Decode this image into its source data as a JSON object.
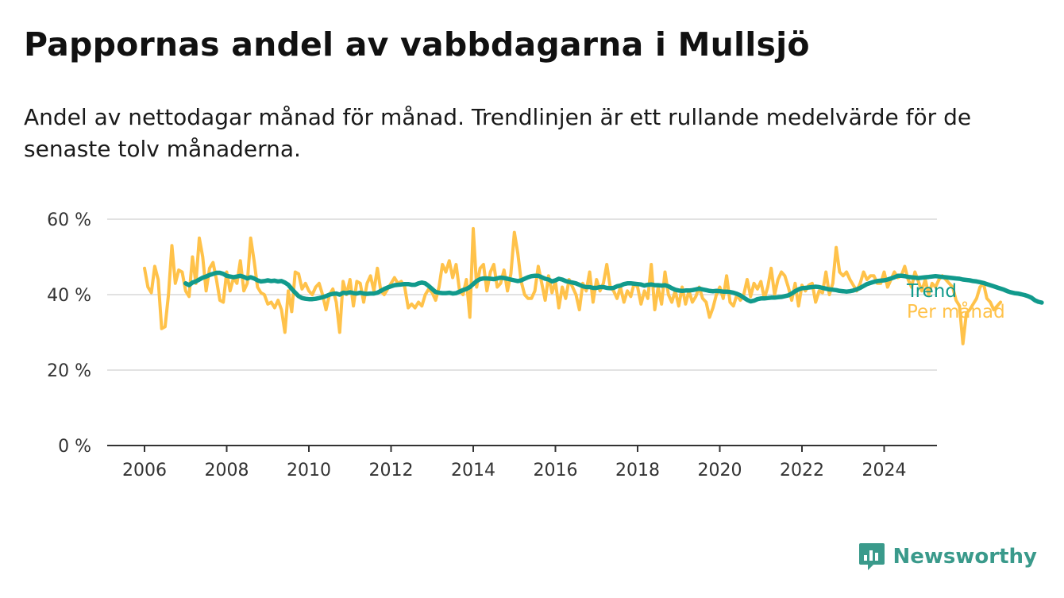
{
  "title": "Pappornas andel av vabbdagarna i Mullsjö",
  "subtitle": "Andel av nettodagar månad för månad. Trendlinjen är ett rullande medelvärde för de senaste tolv månaderna.",
  "brand": "Newsworthy",
  "colors": {
    "trend": "#119a8c",
    "monthly": "#ffc24a",
    "grid": "#d9d9d9",
    "axis": "#333333",
    "brand": "#3a9a8b"
  },
  "chart_data": {
    "type": "line",
    "title": "Pappornas andel av vabbdagarna i Mullsjö",
    "xlabel": "",
    "ylabel": "",
    "x_ticks": [
      "2006",
      "2008",
      "2010",
      "2012",
      "2014",
      "2016",
      "2018",
      "2020",
      "2022",
      "2024"
    ],
    "y_ticks": [
      "0 %",
      "20 %",
      "40 %",
      "60 %"
    ],
    "ylim": [
      0,
      60
    ],
    "xlim": [
      "2005-07",
      "2024-12"
    ],
    "grid": true,
    "legend_position": "right, at line ends",
    "series": [
      {
        "name": "Trend",
        "start": "2007-01",
        "values": [
          43,
          42.5,
          43.2,
          43.5,
          44,
          44.5,
          44.8,
          45.2,
          45.5,
          45.8,
          45.8,
          45.5,
          45,
          44.8,
          44.6,
          44.8,
          45,
          44.7,
          44.3,
          44.6,
          44.3,
          43.8,
          43.5,
          43.6,
          43.8,
          43.6,
          43.7,
          43.5,
          43.6,
          43.2,
          42.6,
          41.5,
          40.5,
          39.6,
          39.1,
          38.9,
          38.8,
          38.8,
          38.9,
          39.1,
          39.3,
          39.6,
          40,
          40.2,
          40.3,
          40,
          40.5,
          40.4,
          40.6,
          40.4,
          40.3,
          40.5,
          40.3,
          40.2,
          40.3,
          40.3,
          40.5,
          41,
          41.5,
          41.9,
          42.2,
          42.5,
          42.6,
          42.7,
          42.8,
          42.8,
          42.6,
          42.6,
          43,
          43.2,
          43,
          42.3,
          41.5,
          40.7,
          40.5,
          40.4,
          40.4,
          40.5,
          40.3,
          40.4,
          40.8,
          41.2,
          41.5,
          42,
          42.8,
          43.6,
          44.1,
          44.3,
          44.3,
          44.2,
          44.1,
          44.3,
          44.5,
          44.4,
          44.2,
          44,
          43.8,
          43.6,
          43.8,
          44.2,
          44.6,
          44.9,
          45,
          45,
          44.6,
          44.2,
          44,
          43.5,
          43.8,
          44.2,
          44,
          43.6,
          43.4,
          43.2,
          43,
          42.6,
          42.2,
          42,
          42,
          41.8,
          41.8,
          42,
          42,
          41.8,
          41.7,
          41.8,
          42.2,
          42.4,
          42.8,
          43,
          43,
          42.9,
          42.8,
          42.7,
          42.4,
          42.6,
          42.7,
          42.5,
          42.5,
          42.4,
          42.5,
          42.2,
          41.7,
          41.3,
          41.1,
          41,
          41.1,
          41.1,
          41.2,
          41.4,
          41.6,
          41.4,
          41.2,
          41,
          40.9,
          41,
          40.9,
          40.8,
          40.8,
          40.7,
          40.5,
          40.2,
          39.8,
          39.2,
          38.6,
          38.2,
          38.4,
          38.8,
          39,
          39,
          39.1,
          39.2,
          39.2,
          39.3,
          39.4,
          39.6,
          39.8,
          40.3,
          40.9,
          41.4,
          41.7,
          41.8,
          41.9,
          42,
          42.1,
          42,
          41.8,
          41.6,
          41.4,
          41.3,
          41.2,
          41,
          40.9,
          40.8,
          40.9,
          41.1,
          41.4,
          41.8,
          42.3,
          42.8,
          43.1,
          43.4,
          43.6,
          43.7,
          43.8,
          44,
          44.3,
          44.6,
          45,
          45,
          44.9,
          44.7,
          44.6,
          44.5,
          44.4,
          44.5,
          44.6,
          44.7,
          44.8,
          44.9,
          44.8,
          44.7,
          44.6,
          44.5,
          44.4,
          44.3,
          44.2,
          44,
          43.9,
          43.8,
          43.6,
          43.5,
          43.3,
          43.1,
          42.8,
          42.5,
          42.2,
          41.9,
          41.6,
          41.3,
          40.9,
          40.6,
          40.4,
          40.3,
          40.1,
          39.9,
          39.6,
          39.2,
          38.5,
          38.1,
          37.9
        ]
      },
      {
        "name": "Per månad",
        "start": "2006-01",
        "values": [
          47,
          42,
          40.5,
          47.5,
          44,
          31,
          31.5,
          40,
          53,
          43,
          46.5,
          46,
          41,
          39.5,
          50,
          43,
          55,
          50,
          41,
          47,
          48.5,
          44,
          38.5,
          38,
          46,
          41,
          44.5,
          43,
          49,
          41,
          43,
          55,
          49,
          42,
          40.5,
          40,
          37.5,
          38,
          36.5,
          38.5,
          36,
          30,
          41,
          35.5,
          46,
          45.5,
          41.5,
          43,
          41,
          40,
          42,
          43,
          40,
          36,
          40,
          41.5,
          38,
          30,
          43.5,
          40,
          44,
          37,
          43.5,
          43,
          38,
          43,
          45,
          41,
          47,
          41,
          40,
          41.5,
          43,
          44.5,
          43,
          43.5,
          42,
          36.5,
          37.5,
          36.5,
          38,
          37,
          40,
          41.5,
          40.5,
          38.5,
          42,
          48,
          46,
          49,
          44.5,
          48,
          41,
          40,
          44,
          34,
          57.5,
          42,
          47,
          48,
          41,
          46,
          48,
          42,
          43,
          46.5,
          41,
          45.5,
          56.5,
          51,
          43.5,
          40,
          39,
          39,
          41,
          47.5,
          43,
          38.5,
          45,
          40.5,
          43.5,
          36.5,
          42,
          39,
          44,
          42,
          40,
          36,
          43,
          41,
          46,
          38,
          44,
          41,
          43,
          48,
          42,
          41,
          39,
          42,
          38,
          41,
          39.5,
          43,
          42,
          37.5,
          41,
          39,
          48,
          36,
          42,
          37.5,
          46,
          40,
          38,
          41,
          37,
          42,
          37.5,
          41,
          38,
          39.5,
          42,
          39,
          38,
          34,
          36.5,
          40,
          42,
          39,
          45,
          38,
          37,
          40,
          38.5,
          40,
          44,
          39.5,
          43,
          41.5,
          43.5,
          39,
          42,
          47,
          40,
          44,
          46,
          45,
          42,
          38.5,
          43,
          37,
          42.5,
          41,
          42.5,
          43,
          38,
          41,
          40.5,
          46,
          40,
          43,
          52.5,
          46,
          45,
          46,
          44,
          42.5,
          41,
          43,
          46,
          44,
          45,
          45,
          43,
          43,
          46,
          42,
          44,
          46,
          44.5,
          45,
          47.5,
          44,
          42,
          46,
          43.5,
          41,
          44,
          40,
          43,
          42,
          44,
          45,
          44,
          43,
          42,
          38.5,
          37,
          27,
          35,
          36,
          37.5,
          39,
          42,
          43,
          39,
          38,
          36,
          37,
          38
        ]
      }
    ]
  }
}
